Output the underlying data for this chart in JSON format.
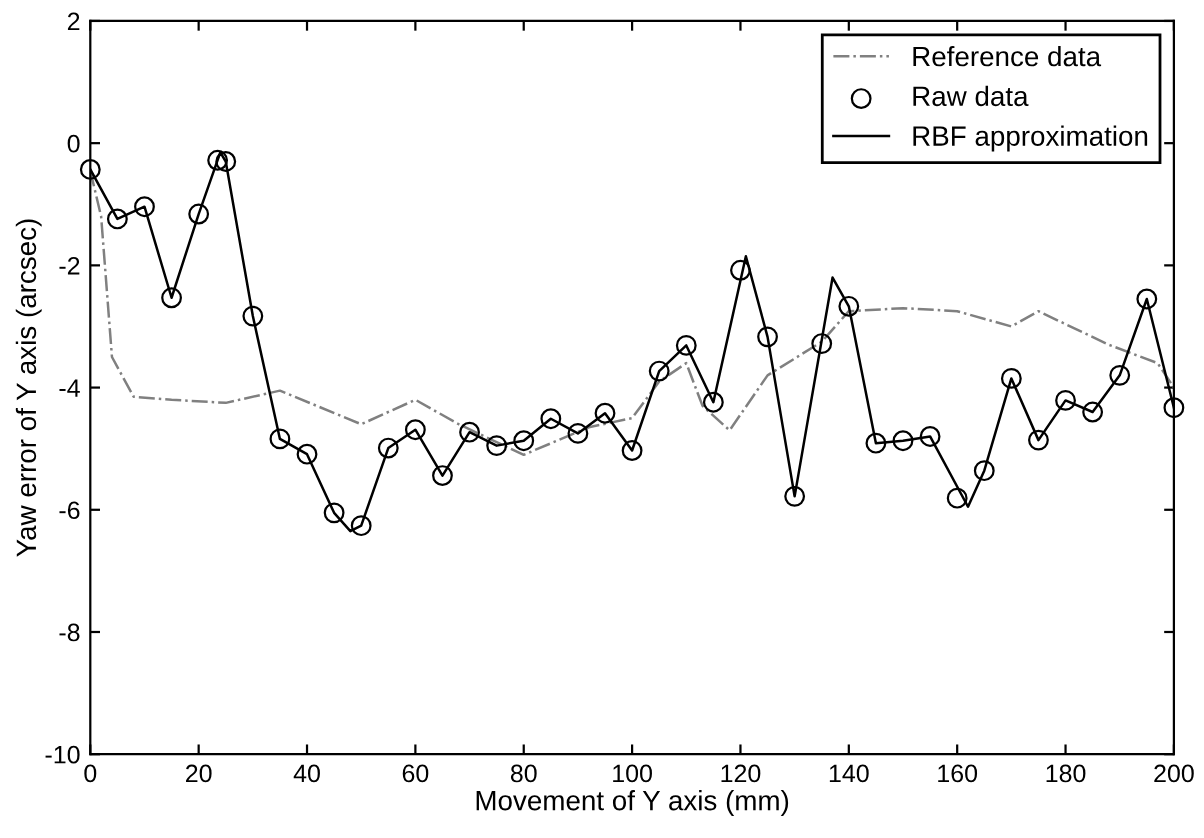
{
  "chart_data": {
    "type": "line",
    "xlabel": "Movement of Y axis (mm)",
    "ylabel": "Yaw error of Y axis (arcsec)",
    "xlim": [
      0,
      200
    ],
    "xticks": [
      0,
      20,
      40,
      60,
      80,
      100,
      120,
      140,
      160,
      180,
      200
    ],
    "ylim": [
      -10,
      2
    ],
    "yticks": [
      -10,
      -8,
      -6,
      -4,
      -2,
      0,
      2
    ],
    "grid": false,
    "legend": "top right",
    "series": [
      {
        "name": "Reference data",
        "line_style": "dashdot",
        "marker": "none",
        "color": "#808080",
        "x": [
          0,
          2,
          4,
          8,
          15,
          25,
          35,
          50,
          60,
          68,
          80,
          92,
          100,
          105,
          110,
          113,
          118,
          125,
          135,
          140,
          150,
          160,
          170,
          175,
          188,
          197,
          200
        ],
        "values": [
          -0.45,
          -1.2,
          -3.5,
          -4.15,
          -4.2,
          -4.25,
          -4.05,
          -4.6,
          -4.2,
          -4.6,
          -5.1,
          -4.65,
          -4.5,
          -3.9,
          -3.6,
          -4.3,
          -4.7,
          -3.8,
          -3.25,
          -2.75,
          -2.7,
          -2.75,
          -3.0,
          -2.75,
          -3.3,
          -3.6,
          -4.0
        ]
      },
      {
        "name": "Raw data",
        "type": "scatter",
        "marker": "circle",
        "color": "#000000",
        "x": [
          0,
          5,
          10,
          15,
          20,
          23.5,
          25,
          30,
          35,
          40,
          45,
          50,
          55,
          60,
          65,
          70,
          75,
          80,
          85,
          90,
          95,
          100,
          105,
          110,
          115,
          120,
          125,
          130,
          135,
          140,
          145,
          150,
          155,
          160,
          165,
          170,
          175,
          180,
          185,
          190,
          195,
          200
        ],
        "values": [
          -0.43,
          -1.24,
          -1.04,
          -2.53,
          -1.16,
          -0.28,
          -0.3,
          -2.83,
          -4.84,
          -5.09,
          -6.05,
          -6.26,
          -4.99,
          -4.69,
          -5.44,
          -4.73,
          -4.95,
          -4.87,
          -4.51,
          -4.75,
          -4.42,
          -5.03,
          -3.73,
          -3.31,
          -4.24,
          -2.08,
          -3.17,
          -5.78,
          -3.28,
          -2.67,
          -4.91,
          -4.87,
          -4.8,
          -5.81,
          -5.36,
          -3.85,
          -4.86,
          -4.21,
          -4.4,
          -3.8,
          -2.55,
          -4.33
        ]
      },
      {
        "name": "RBF approximation",
        "line_style": "solid",
        "marker": "none",
        "color": "#000000",
        "x": [
          0,
          5,
          10,
          15,
          20,
          24,
          25,
          30,
          35,
          40,
          45,
          48,
          50,
          55,
          60,
          65,
          70,
          75,
          80,
          85,
          90,
          95,
          100,
          105,
          110,
          115,
          121,
          125,
          130,
          137,
          140,
          145,
          150,
          155,
          162,
          165,
          170,
          175,
          180,
          185,
          190,
          195,
          200
        ],
        "values": [
          -0.43,
          -1.24,
          -1.04,
          -2.53,
          -1.16,
          -0.15,
          -0.3,
          -2.83,
          -4.84,
          -5.09,
          -6.05,
          -6.35,
          -6.26,
          -4.99,
          -4.69,
          -5.44,
          -4.73,
          -4.95,
          -4.87,
          -4.51,
          -4.75,
          -4.42,
          -5.03,
          -3.73,
          -3.31,
          -4.24,
          -1.85,
          -3.17,
          -5.78,
          -2.2,
          -2.67,
          -4.91,
          -4.87,
          -4.8,
          -5.95,
          -5.36,
          -3.85,
          -4.86,
          -4.21,
          -4.4,
          -3.8,
          -2.55,
          -4.33
        ]
      }
    ]
  }
}
